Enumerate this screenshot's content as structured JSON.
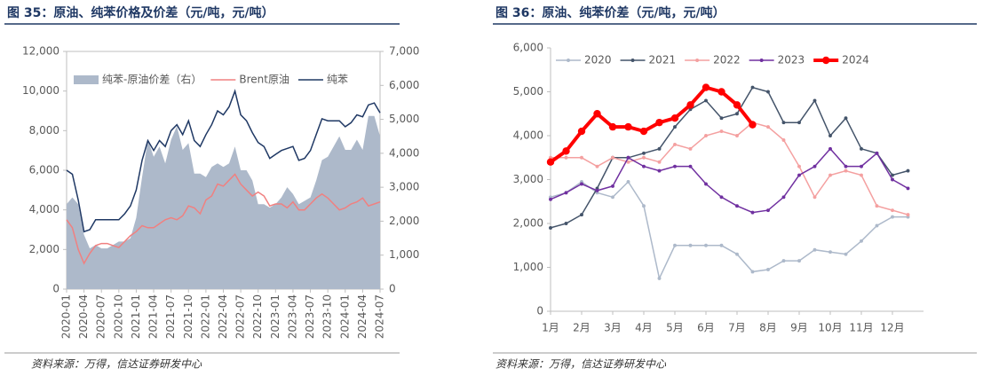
{
  "chart_data": [
    {
      "type": "line",
      "title": "图 35：原油、纯苯价格及价差（元/吨，元/吨）",
      "source": "资料来源：万得，信达证券研发中心",
      "legend": "top-left",
      "categories": [
        "2020-01",
        null,
        null,
        "2020-04",
        null,
        null,
        "2020-07",
        null,
        null,
        "2020-10",
        null,
        null,
        "2021-01",
        null,
        null,
        "2021-04",
        null,
        null,
        "2021-07",
        null,
        null,
        "2021-10",
        null,
        null,
        "2022-01",
        null,
        null,
        "2022-04",
        null,
        null,
        "2022-07",
        null,
        null,
        "2022-10",
        null,
        null,
        "2023-01",
        null,
        null,
        "2023-04",
        null,
        null,
        "2023-07",
        null,
        null,
        "2023-10",
        null,
        null,
        "2024-01",
        null,
        null,
        "2024-04",
        null,
        null,
        "2024-07"
      ],
      "ylim": [
        0,
        12000
      ],
      "yticks": [
        0,
        {
          "value": 2000,
          "label": "2,000"
        },
        {
          "value": 4000,
          "label": "4,000"
        },
        {
          "value": 6000,
          "label": "6,000"
        },
        {
          "value": 8000,
          "label": "8,000"
        },
        {
          "value": 10000,
          "label": "10,000"
        },
        {
          "value": 12000,
          "label": "12,000"
        }
      ],
      "y2lim": [
        0,
        7000
      ],
      "y2ticks": [
        0,
        {
          "value": 1000,
          "label": "1,000"
        },
        {
          "value": 2000,
          "label": "2,000"
        },
        {
          "value": 3000,
          "label": "3,000"
        },
        {
          "value": 4000,
          "label": "4,000"
        },
        {
          "value": 5000,
          "label": "5,000"
        },
        {
          "value": 6000,
          "label": "6,000"
        },
        {
          "value": 7000,
          "label": "7,000"
        }
      ],
      "series": [
        {
          "name": "纯苯-原油价差（右）",
          "color": "#adb9ca",
          "mark": "area",
          "axis": "y2",
          "values": [
            2500,
            2700,
            2500,
            1600,
            1200,
            1300,
            1200,
            1200,
            1300,
            1400,
            1400,
            1500,
            2100,
            3300,
            4400,
            3900,
            4200,
            3700,
            4400,
            4800,
            4100,
            4300,
            3400,
            3400,
            3300,
            3600,
            3700,
            3600,
            3700,
            4200,
            3500,
            3500,
            3200,
            2500,
            2500,
            2400,
            2500,
            2700,
            3000,
            2800,
            2500,
            2600,
            2700,
            3200,
            3800,
            3900,
            4200,
            4500,
            4100,
            4100,
            4400,
            4100,
            5100,
            5100,
            4500
          ]
        },
        {
          "name": "Brent原油",
          "color": "#f08080",
          "mark": "line",
          "values": [
            3500,
            3100,
            2000,
            1300,
            1800,
            2200,
            2300,
            2300,
            2200,
            2100,
            2400,
            2700,
            2900,
            3200,
            3100,
            3100,
            3300,
            3500,
            3600,
            3500,
            3700,
            4200,
            4100,
            3800,
            4500,
            4700,
            5300,
            5200,
            5500,
            5800,
            5300,
            5000,
            4700,
            4900,
            4700,
            4200,
            4300,
            4300,
            4100,
            4400,
            4000,
            4000,
            4300,
            4600,
            4800,
            4600,
            4300,
            4000,
            4100,
            4300,
            4400,
            4600,
            4200,
            4300,
            4400
          ]
        },
        {
          "name": "纯苯",
          "color": "#1f3864",
          "mark": "line",
          "values": [
            6000,
            5800,
            4500,
            2900,
            3000,
            3500,
            3500,
            3500,
            3500,
            3500,
            3800,
            4200,
            5000,
            6500,
            7500,
            7000,
            7500,
            7200,
            8000,
            8300,
            7800,
            8500,
            7500,
            7200,
            7800,
            8300,
            9000,
            8800,
            9200,
            10000,
            8800,
            8500,
            7900,
            7400,
            7200,
            6600,
            6800,
            7000,
            7100,
            7200,
            6500,
            6600,
            7000,
            7800,
            8600,
            8500,
            8500,
            8500,
            8200,
            8400,
            8800,
            8700,
            9300,
            9400,
            8900
          ]
        }
      ]
    },
    {
      "type": "line",
      "title": "图 36：原油、纯苯价差（元/吨，元/吨）",
      "source": "资料来源：万得，信达证券研发中心",
      "legend": "top",
      "markers": true,
      "categories": [
        "1月",
        null,
        "2月",
        null,
        "3月",
        null,
        "4月",
        null,
        "5月",
        null,
        "6月",
        null,
        "7月",
        null,
        "8月",
        null,
        "9月",
        null,
        "10月",
        null,
        "11月",
        null,
        "12月",
        null
      ],
      "ylim": [
        0,
        6000
      ],
      "yticks": [
        0,
        {
          "value": 1000,
          "label": "1,000"
        },
        {
          "value": 2000,
          "label": "2,000"
        },
        {
          "value": 3000,
          "label": "3,000"
        },
        {
          "value": 4000,
          "label": "4,000"
        },
        {
          "value": 5000,
          "label": "5,000"
        },
        {
          "value": 6000,
          "label": "6,000"
        }
      ],
      "series": [
        {
          "name": "2020",
          "color": "#adb9ca",
          "line_width": 1.5,
          "values": [
            2600,
            2700,
            2950,
            2700,
            2600,
            2950,
            2400,
            750,
            1500,
            1500,
            1500,
            1500,
            1300,
            900,
            950,
            1150,
            1150,
            1400,
            1350,
            1300,
            1600,
            1950,
            2150,
            2150
          ]
        },
        {
          "name": "2021",
          "color": "#44546a",
          "line_width": 1.5,
          "values": [
            1900,
            2000,
            2200,
            2800,
            3500,
            3500,
            3600,
            3700,
            4200,
            4600,
            4800,
            4400,
            4500,
            5100,
            5000,
            4300,
            4300,
            4800,
            4000,
            4400,
            3700,
            3600,
            3100,
            3200
          ]
        },
        {
          "name": "2022",
          "color": "#f4a0a0",
          "line_width": 1.5,
          "values": [
            3500,
            3500,
            3500,
            3300,
            3500,
            3400,
            3500,
            3400,
            3800,
            3700,
            4000,
            4100,
            4000,
            4300,
            4200,
            3900,
            3300,
            2600,
            3100,
            3200,
            3100,
            2400,
            2300,
            2200
          ]
        },
        {
          "name": "2023",
          "color": "#7030a0",
          "line_width": 1.5,
          "values": [
            2550,
            2700,
            2900,
            2750,
            2850,
            3500,
            3300,
            3200,
            3300,
            3300,
            2900,
            2600,
            2400,
            2250,
            2300,
            2600,
            3100,
            3300,
            3700,
            3300,
            3300,
            3600,
            3000,
            2800
          ]
        },
        {
          "name": "2024",
          "color": "#ff0000",
          "line_width": 4,
          "values": [
            3400,
            3650,
            4100,
            4500,
            4200,
            4200,
            4100,
            4300,
            4400,
            4700,
            5100,
            5000,
            4700,
            4250,
            null,
            null,
            null,
            null,
            null,
            null,
            null,
            null,
            null,
            null
          ]
        }
      ]
    }
  ]
}
